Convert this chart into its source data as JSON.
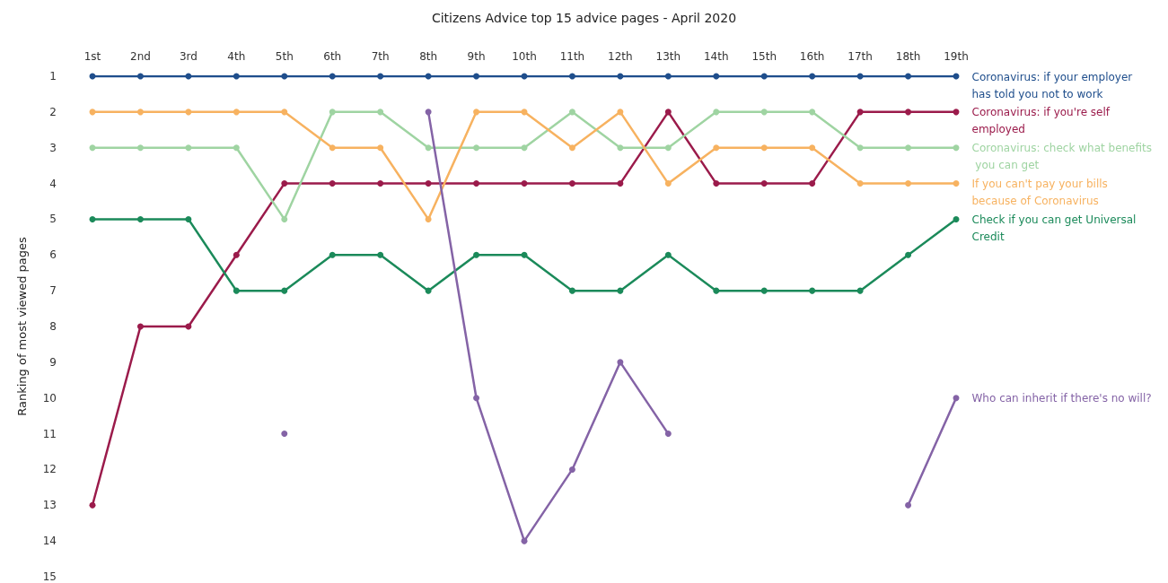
{
  "chart_data": {
    "type": "line",
    "title": "Citizens Advice top 15 advice pages - April 2020",
    "ylabel": "Ranking of most viewed pages",
    "categories": [
      "1st",
      "2nd",
      "3rd",
      "4th",
      "5th",
      "6th",
      "7th",
      "8th",
      "9th",
      "10th",
      "11th",
      "12th",
      "13th",
      "14th",
      "15th",
      "16th",
      "17th",
      "18th",
      "19th"
    ],
    "ylim": [
      15,
      1
    ],
    "yticks": [
      1,
      2,
      3,
      4,
      5,
      6,
      7,
      8,
      9,
      10,
      11,
      12,
      13,
      14,
      15
    ],
    "grid": false,
    "legend": false,
    "marker": "circle",
    "line_style": "solid",
    "series": [
      {
        "name": "Coronavirus: if your employer has told you not to work",
        "color": "#1f4e8c",
        "values": [
          1,
          1,
          1,
          1,
          1,
          1,
          1,
          1,
          1,
          1,
          1,
          1,
          1,
          1,
          1,
          1,
          1,
          1,
          1
        ]
      },
      {
        "name": "Coronavirus: if you're self employed",
        "color": "#9b1b4b",
        "values": [
          13,
          8,
          8,
          6,
          4,
          4,
          4,
          4,
          4,
          4,
          4,
          4,
          2,
          4,
          4,
          4,
          2,
          2,
          2
        ]
      },
      {
        "name": "Coronavirus: check what benefits you can get",
        "color": "#9fd4a2",
        "values": [
          3,
          3,
          3,
          3,
          5,
          2,
          2,
          3,
          3,
          3,
          2,
          3,
          3,
          2,
          2,
          2,
          3,
          3,
          3
        ]
      },
      {
        "name": "If you can't pay your bills because of Coronavirus",
        "color": "#f7b260",
        "values": [
          2,
          2,
          2,
          2,
          2,
          3,
          3,
          5,
          2,
          2,
          3,
          2,
          4,
          3,
          3,
          3,
          4,
          4,
          4
        ]
      },
      {
        "name": "Check if you can get Universal Credit",
        "color": "#1b8a5a",
        "values": [
          5,
          5,
          5,
          7,
          7,
          6,
          6,
          7,
          6,
          6,
          7,
          7,
          6,
          7,
          7,
          7,
          7,
          6,
          5
        ]
      },
      {
        "name": "Who can inherit if there's no will?",
        "color": "#8463a6",
        "values": [
          null,
          null,
          null,
          null,
          11,
          null,
          null,
          2,
          10,
          14,
          12,
          9,
          11,
          null,
          null,
          null,
          null,
          13,
          10
        ]
      }
    ]
  }
}
